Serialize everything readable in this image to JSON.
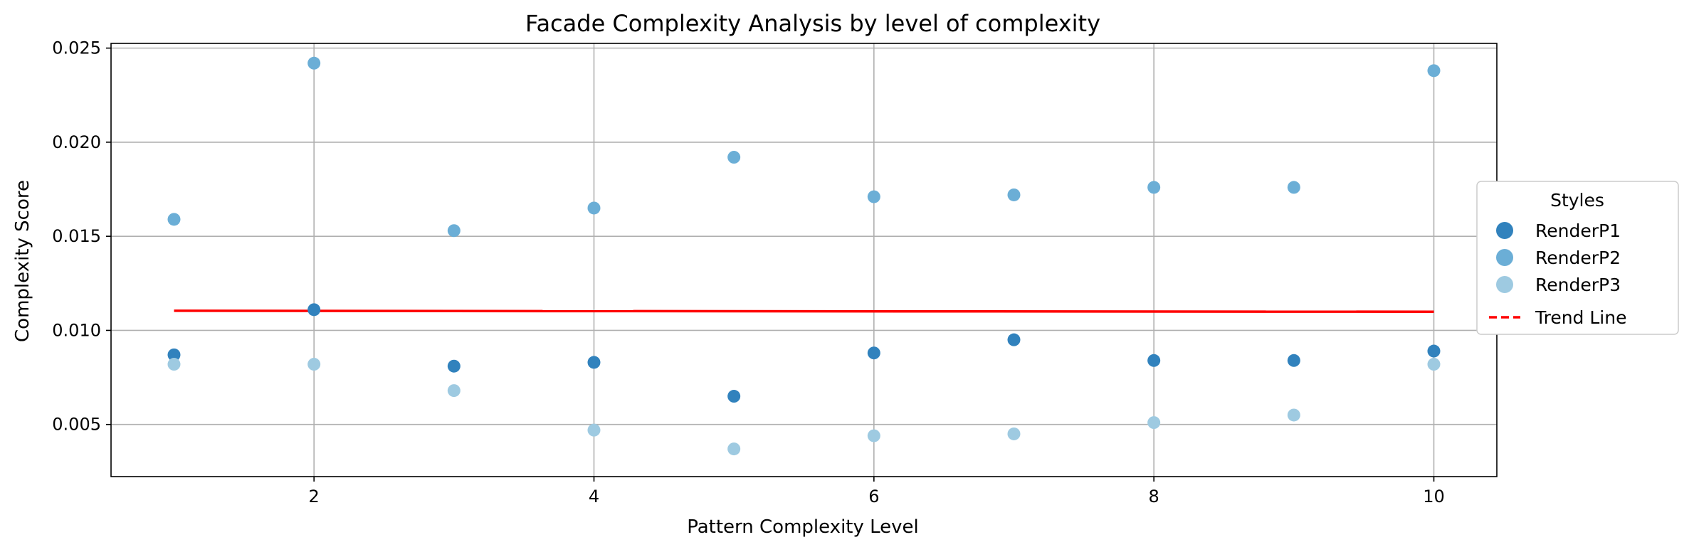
{
  "chart_data": {
    "type": "scatter",
    "title": "Facade Complexity Analysis by level of complexity",
    "xlabel": "Pattern Complexity Level",
    "ylabel": "Complexity Score",
    "xlim": [
      0.55,
      10.45
    ],
    "ylim": [
      0.00223,
      0.02525
    ],
    "xticks": [
      2,
      4,
      6,
      8,
      10
    ],
    "yticks": [
      0.005,
      0.01,
      0.015,
      0.02,
      0.025
    ],
    "ytick_labels": [
      "0.005",
      "0.010",
      "0.015",
      "0.020",
      "0.025"
    ],
    "grid": true,
    "legend": {
      "title": "Styles",
      "placement": "right-outside"
    },
    "series": [
      {
        "name": "RenderP1",
        "color": "#3182bd",
        "x": [
          1,
          2,
          3,
          4,
          5,
          6,
          7,
          8,
          9,
          10
        ],
        "y": [
          0.0087,
          0.0111,
          0.0081,
          0.0083,
          0.0065,
          0.0088,
          0.0095,
          0.0084,
          0.0084,
          0.0089
        ]
      },
      {
        "name": "RenderP2",
        "color": "#6baed6",
        "x": [
          1,
          2,
          3,
          4,
          5,
          6,
          7,
          8,
          9,
          10
        ],
        "y": [
          0.0159,
          0.0242,
          0.0153,
          0.0165,
          0.0192,
          0.0171,
          0.0172,
          0.0176,
          0.0176,
          0.0238
        ]
      },
      {
        "name": "RenderP3",
        "color": "#9ecae1",
        "x": [
          1,
          2,
          3,
          4,
          5,
          6,
          7,
          8,
          9,
          10
        ],
        "y": [
          0.0082,
          0.0082,
          0.0068,
          0.0047,
          0.0037,
          0.0044,
          0.0045,
          0.0051,
          0.0055,
          0.0082
        ]
      }
    ],
    "trend_line": {
      "name": "Trend Line",
      "color": "#ff0000",
      "x": [
        1,
        10
      ],
      "y": [
        0.01104,
        0.01099
      ]
    }
  }
}
